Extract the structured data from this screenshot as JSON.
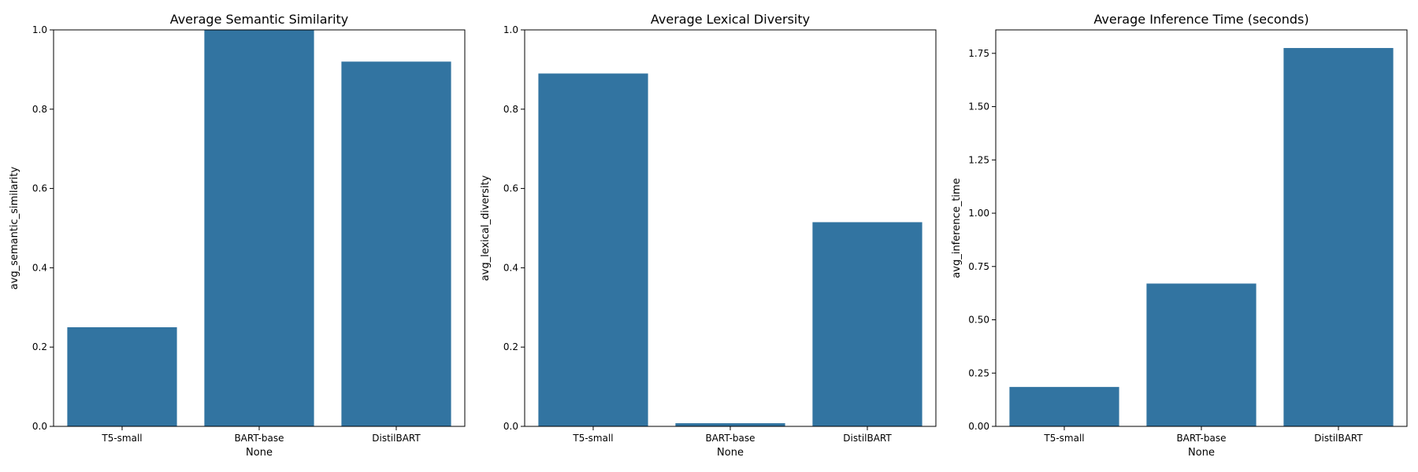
{
  "chart_data": [
    {
      "type": "bar",
      "title": "Average Semantic Similarity",
      "xlabel": "None",
      "ylabel": "avg_semantic_similarity",
      "categories": [
        "T5-small",
        "BART-base",
        "DistilBART"
      ],
      "values": [
        0.25,
        1.0,
        0.92
      ],
      "ylim": [
        0,
        1.0
      ],
      "yticks": [
        0.0,
        0.2,
        0.4,
        0.6,
        0.8,
        1.0
      ],
      "ytick_labels": [
        "0.0",
        "0.2",
        "0.4",
        "0.6",
        "0.8",
        "1.0"
      ],
      "bar_color": "#3274a1",
      "grid": false
    },
    {
      "type": "bar",
      "title": "Average Lexical Diversity",
      "xlabel": "None",
      "ylabel": "avg_lexical_diversity",
      "categories": [
        "T5-small",
        "BART-base",
        "DistilBART"
      ],
      "values": [
        0.89,
        0.008,
        0.515
      ],
      "ylim": [
        0,
        1.0
      ],
      "yticks": [
        0.0,
        0.2,
        0.4,
        0.6,
        0.8,
        1.0
      ],
      "ytick_labels": [
        "0.0",
        "0.2",
        "0.4",
        "0.6",
        "0.8",
        "1.0"
      ],
      "bar_color": "#3274a1",
      "grid": false
    },
    {
      "type": "bar",
      "title": "Average Inference Time (seconds)",
      "xlabel": "None",
      "ylabel": "avg_inference_time",
      "categories": [
        "T5-small",
        "BART-base",
        "DistilBART"
      ],
      "values": [
        0.185,
        0.67,
        1.775
      ],
      "ylim": [
        0,
        1.86
      ],
      "yticks": [
        0.0,
        0.25,
        0.5,
        0.75,
        1.0,
        1.25,
        1.5,
        1.75
      ],
      "ytick_labels": [
        "0.00",
        "0.25",
        "0.50",
        "0.75",
        "1.00",
        "1.25",
        "1.50",
        "1.75"
      ],
      "bar_color": "#3274a1",
      "grid": false
    }
  ]
}
